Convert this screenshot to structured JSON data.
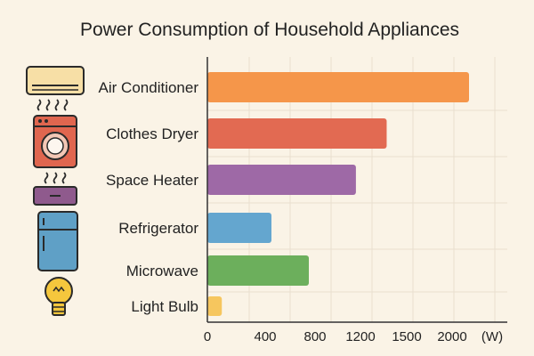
{
  "chart_data": {
    "type": "bar",
    "orientation": "horizontal",
    "title": "Power Consumption of Household Appliances",
    "categories": [
      "Air Conditioner",
      "Clothes Dryer",
      "Space Heater",
      "Refrigerator",
      "Microwave",
      "Light Bulb"
    ],
    "values": [
      2000,
      1370,
      1160,
      450,
      750,
      100
    ],
    "x_ticks": [
      {
        "value": 0,
        "label": "0"
      },
      {
        "value": 400,
        "label": "400"
      },
      {
        "value": 800,
        "label": "800"
      },
      {
        "value": 1200,
        "label": "1200"
      },
      {
        "value": 1500,
        "label": "1500"
      },
      {
        "value": 2000,
        "label": "2000"
      }
    ],
    "x_unit": "(W)",
    "xlim": [
      0,
      2000
    ],
    "grid": true,
    "bar_colors": [
      "#f5964a",
      "#e26a52",
      "#9e69a6",
      "#64a6cf",
      "#6caf5c",
      "#f6c65e"
    ],
    "icons": [
      "air-conditioner-icon",
      "clothes-dryer-icon",
      "space-heater-icon",
      "refrigerator-icon",
      "microwave-icon",
      "light-bulb-icon"
    ]
  }
}
